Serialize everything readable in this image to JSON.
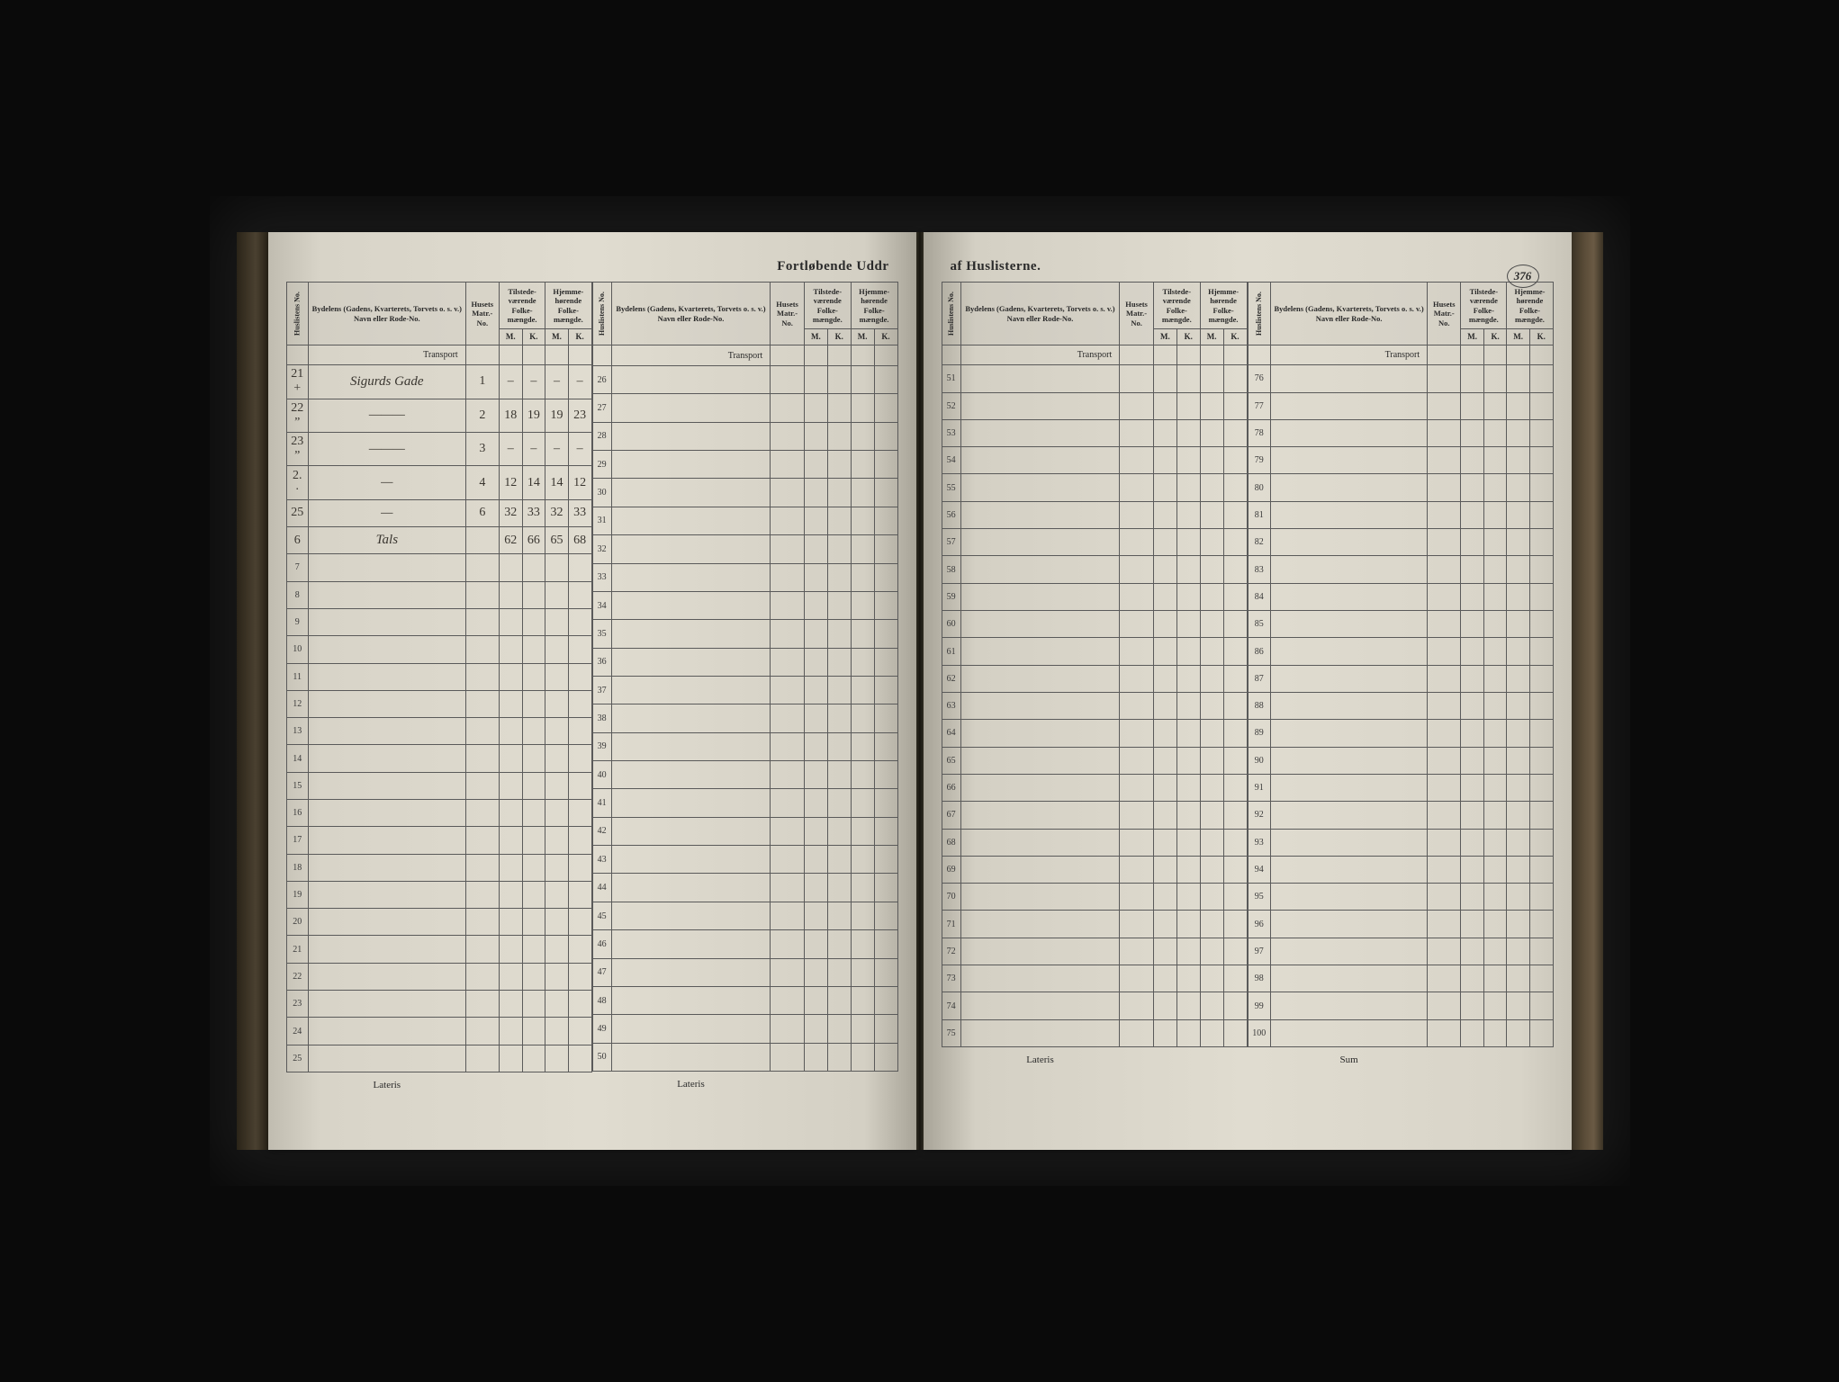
{
  "document": {
    "title_left": "Fortløbende Uddr",
    "title_right": "af Huslisterne.",
    "page_number": "376"
  },
  "headers": {
    "husliste": "Huslistens No.",
    "street": "Bydelens (Gadens, Kvarterets, Torvets o. s. v.) Navn eller Rode-No.",
    "matr": "Husets Matr.-No.",
    "tilstede": "Tilstede-værende Folke-mængde.",
    "hjemme": "Hjemme-hørende Folke-mængde.",
    "m": "M.",
    "k": "K.",
    "transport": "Transport",
    "lateris": "Lateris",
    "sum": "Sum"
  },
  "sections": [
    {
      "start": 1,
      "end": 25,
      "footer": "Lateris"
    },
    {
      "start": 26,
      "end": 50,
      "footer": "Lateris"
    },
    {
      "start": 51,
      "end": 75,
      "footer": "Lateris"
    },
    {
      "start": 76,
      "end": 100,
      "footer": "Sum"
    }
  ],
  "entries": {
    "1": {
      "row_label": "21 +",
      "street": "Sigurds Gade",
      "matr": "1",
      "tm": "–",
      "tk": "–",
      "hm": "–",
      "hk": "–"
    },
    "2": {
      "row_label": "22 ”",
      "street": "———",
      "matr": "2",
      "tm": "18",
      "tk": "19",
      "hm": "19",
      "hk": "23"
    },
    "3": {
      "row_label": "23 ”",
      "street": "———",
      "matr": "3",
      "tm": "–",
      "tk": "–",
      "hm": "–",
      "hk": "–"
    },
    "4": {
      "row_label": "2. ·",
      "street": "—",
      "matr": "4",
      "tm": "12",
      "tk": "14",
      "hm": "14",
      "hk": "12"
    },
    "5": {
      "row_label": "25",
      "street": "—",
      "matr": "6",
      "tm": "32",
      "tk": "33",
      "hm": "32",
      "hk": "33"
    },
    "6": {
      "row_label": "",
      "street": "Tals",
      "matr": "",
      "tm": "62",
      "tk": "66",
      "hm": "65",
      "hk": "68",
      "total": true
    }
  }
}
